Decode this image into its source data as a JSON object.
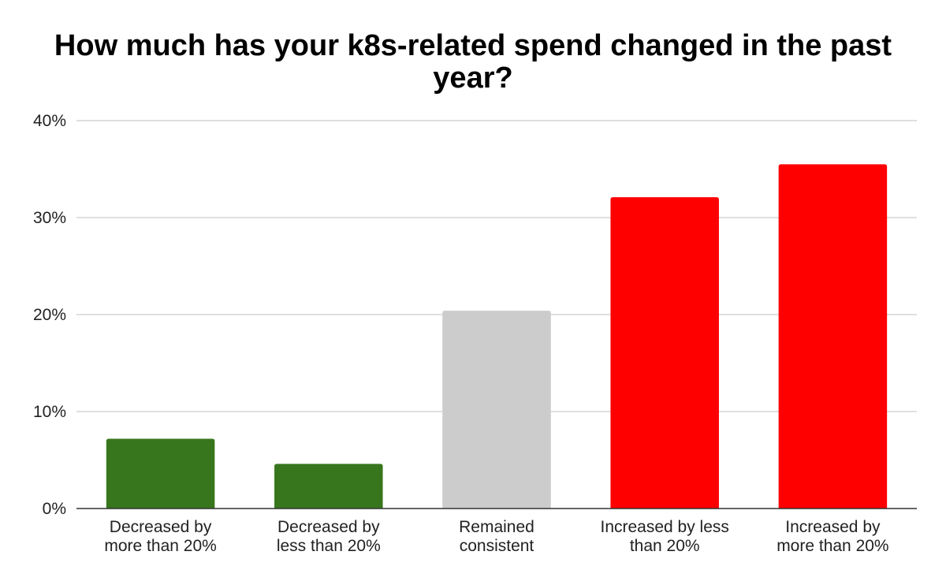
{
  "chart_data": {
    "type": "bar",
    "title_lines": [
      "How much has your k8s-related spend changed in the past",
      "year?"
    ],
    "categories": [
      [
        "Decreased by",
        "more than 20%"
      ],
      [
        "Decreased by",
        "less than 20%"
      ],
      [
        "Remained",
        "consistent"
      ],
      [
        "Increased by less",
        "than 20%"
      ],
      [
        "Increased by",
        "more than 20%"
      ]
    ],
    "values": [
      7.2,
      4.6,
      20.4,
      32.1,
      35.5
    ],
    "bar_colors": [
      "#38761d",
      "#38761d",
      "#cccccc",
      "#ff0000",
      "#ff0000"
    ],
    "ylim": [
      0,
      40
    ],
    "yticks": [
      0,
      10,
      20,
      30,
      40
    ],
    "ytick_labels": [
      "0%",
      "10%",
      "20%",
      "30%",
      "40%"
    ],
    "xlabel": "",
    "ylabel": "",
    "grid": true,
    "legend": "none"
  }
}
